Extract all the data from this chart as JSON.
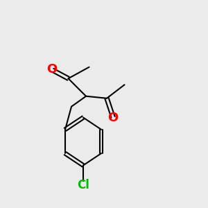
{
  "bg_color": "#ebebeb",
  "bond_color": "#000000",
  "oxygen_color": "#ff0000",
  "chlorine_color": "#00bb00",
  "line_width": 1.5,
  "font_size_O": 13,
  "font_size_Cl": 12,
  "fig_size": [
    3.0,
    3.0
  ],
  "dpi": 100,
  "xlim": [
    0,
    10
  ],
  "ylim": [
    0,
    10
  ]
}
